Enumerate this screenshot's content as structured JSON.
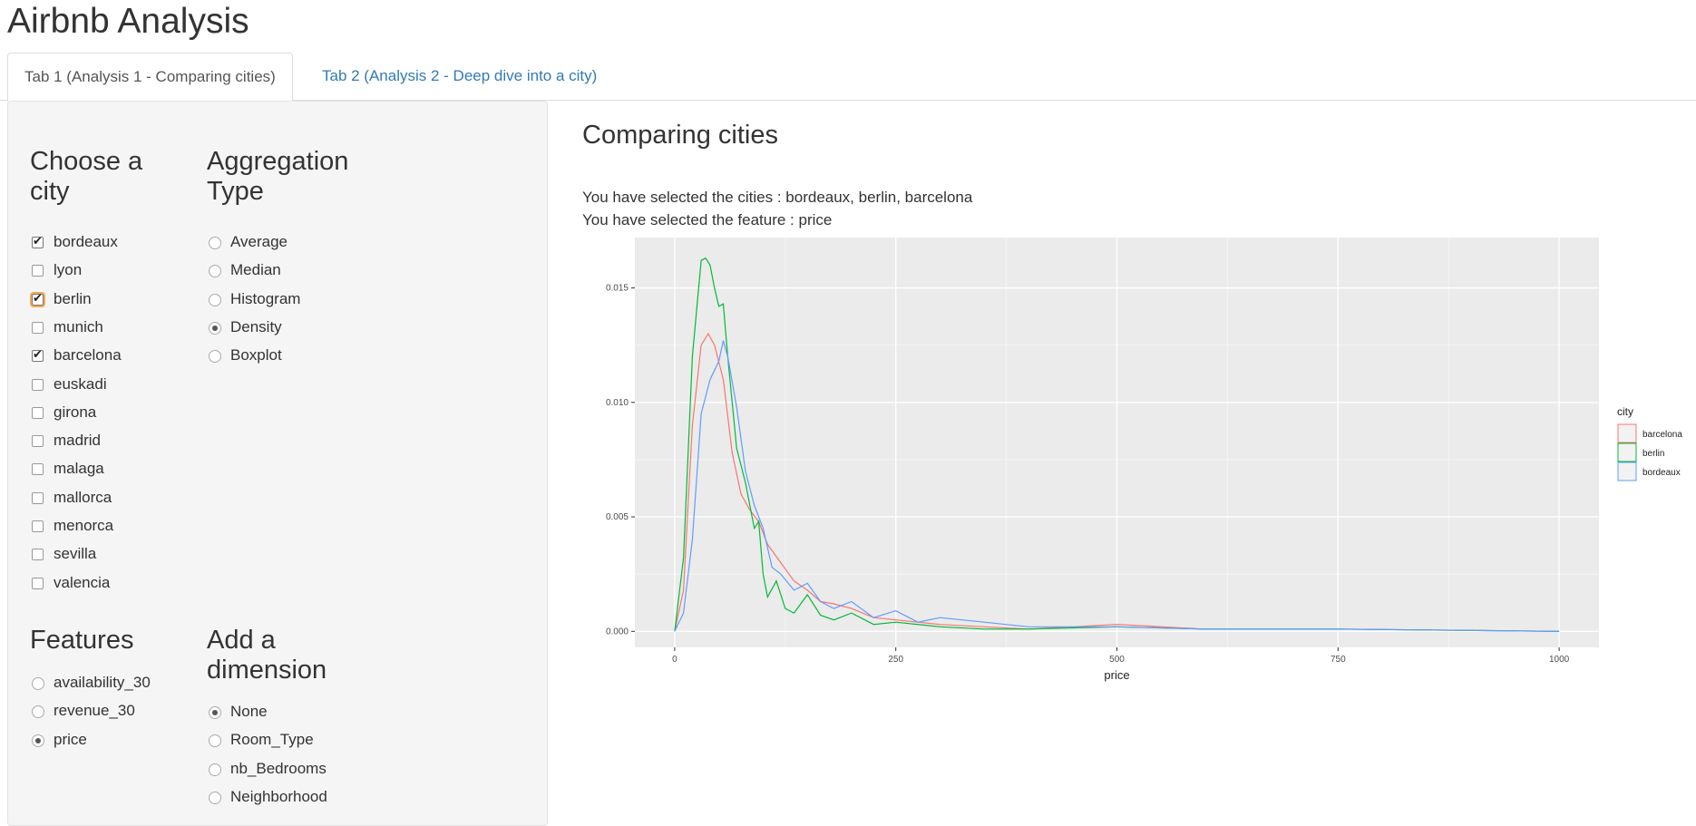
{
  "app": {
    "title": "Airbnb Analysis"
  },
  "tabs": [
    {
      "label": "Tab 1 (Analysis 1 - Comparing cities)",
      "active": true
    },
    {
      "label": "Tab 2 (Analysis 2 - Deep dive into a city)",
      "active": false
    }
  ],
  "sidebar": {
    "city": {
      "title": "Choose a city",
      "options": [
        {
          "label": "bordeaux",
          "checked": true
        },
        {
          "label": "lyon",
          "checked": false
        },
        {
          "label": "berlin",
          "checked": true
        },
        {
          "label": "munich",
          "checked": false
        },
        {
          "label": "barcelona",
          "checked": true
        },
        {
          "label": "euskadi",
          "checked": false
        },
        {
          "label": "girona",
          "checked": false
        },
        {
          "label": "madrid",
          "checked": false
        },
        {
          "label": "malaga",
          "checked": false
        },
        {
          "label": "mallorca",
          "checked": false
        },
        {
          "label": "menorca",
          "checked": false
        },
        {
          "label": "sevilla",
          "checked": false
        },
        {
          "label": "valencia",
          "checked": false
        }
      ]
    },
    "aggregation": {
      "title": "Aggregation Type",
      "options": [
        {
          "label": "Average",
          "checked": false
        },
        {
          "label": "Median",
          "checked": false
        },
        {
          "label": "Histogram",
          "checked": false
        },
        {
          "label": "Density",
          "checked": true
        },
        {
          "label": "Boxplot",
          "checked": false
        }
      ]
    },
    "features": {
      "title": "Features",
      "options": [
        {
          "label": "availability_30",
          "checked": false
        },
        {
          "label": "revenue_30",
          "checked": false
        },
        {
          "label": "price",
          "checked": true
        }
      ]
    },
    "dimension": {
      "title": "Add a dimension",
      "options": [
        {
          "label": "None",
          "checked": true
        },
        {
          "label": "Room_Type",
          "checked": false
        },
        {
          "label": "nb_Bedrooms",
          "checked": false
        },
        {
          "label": "Neighborhood",
          "checked": false
        }
      ]
    }
  },
  "main": {
    "title": "Comparing cities",
    "cities_msg": "You have selected the cities : bordeaux, berlin, barcelona",
    "feature_msg": "You have selected the feature : price"
  },
  "chart_data": {
    "type": "line",
    "title": "",
    "xlabel": "price",
    "ylabel": "",
    "xlim": [
      -45,
      1045
    ],
    "ylim": [
      -0.0007,
      0.0172
    ],
    "x_ticks": [
      0,
      250,
      500,
      750,
      1000
    ],
    "x_tick_labels": [
      "0",
      "250",
      "500",
      "750",
      "1000"
    ],
    "y_ticks": [
      0,
      0.005,
      0.01,
      0.015
    ],
    "y_tick_labels": [
      "0.000",
      "0.005",
      "0.010",
      "0.015"
    ],
    "grid": true,
    "legend": {
      "title": "city",
      "position": "right"
    },
    "series": [
      {
        "name": "barcelona",
        "color": "#F8766D",
        "x": [
          0,
          10,
          20,
          30,
          38,
          45,
          55,
          65,
          75,
          85,
          95,
          105,
          120,
          135,
          150,
          165,
          180,
          200,
          225,
          250,
          300,
          350,
          400,
          500,
          600,
          750,
          1000
        ],
        "y": [
          0.0,
          0.0018,
          0.009,
          0.0125,
          0.013,
          0.0125,
          0.011,
          0.0078,
          0.006,
          0.0053,
          0.0048,
          0.0038,
          0.003,
          0.0022,
          0.0018,
          0.0013,
          0.0012,
          0.001,
          0.0006,
          0.0005,
          0.0003,
          0.0002,
          0.0001,
          0.0003,
          0.0001,
          0.0001,
          0.0
        ]
      },
      {
        "name": "berlin",
        "color": "#00BA38",
        "x": [
          0,
          10,
          20,
          30,
          35,
          40,
          45,
          50,
          55,
          60,
          70,
          80,
          90,
          95,
          100,
          105,
          115,
          125,
          135,
          150,
          165,
          180,
          200,
          225,
          250,
          300,
          350,
          400,
          500,
          600,
          750,
          1000
        ],
        "y": [
          0.0,
          0.0032,
          0.012,
          0.0162,
          0.0163,
          0.016,
          0.015,
          0.0142,
          0.0143,
          0.012,
          0.008,
          0.0065,
          0.0045,
          0.0048,
          0.0025,
          0.0015,
          0.0022,
          0.001,
          0.0008,
          0.0016,
          0.0007,
          0.0005,
          0.0008,
          0.0003,
          0.0004,
          0.0002,
          0.0001,
          0.0001,
          0.0002,
          0.0001,
          0.0001,
          0.0
        ]
      },
      {
        "name": "bordeaux",
        "color": "#619CFF",
        "x": [
          0,
          10,
          20,
          30,
          40,
          50,
          55,
          60,
          70,
          80,
          90,
          100,
          110,
          120,
          135,
          150,
          165,
          180,
          200,
          225,
          250,
          275,
          300,
          350,
          400,
          500,
          600,
          750,
          1000
        ],
        "y": [
          0.0,
          0.0008,
          0.004,
          0.0095,
          0.011,
          0.0118,
          0.0127,
          0.012,
          0.0098,
          0.007,
          0.0055,
          0.0045,
          0.0028,
          0.0025,
          0.0018,
          0.0021,
          0.0013,
          0.001,
          0.0013,
          0.0006,
          0.0009,
          0.0004,
          0.0006,
          0.0004,
          0.0002,
          0.0002,
          0.0001,
          0.0001,
          0.0
        ]
      }
    ]
  }
}
